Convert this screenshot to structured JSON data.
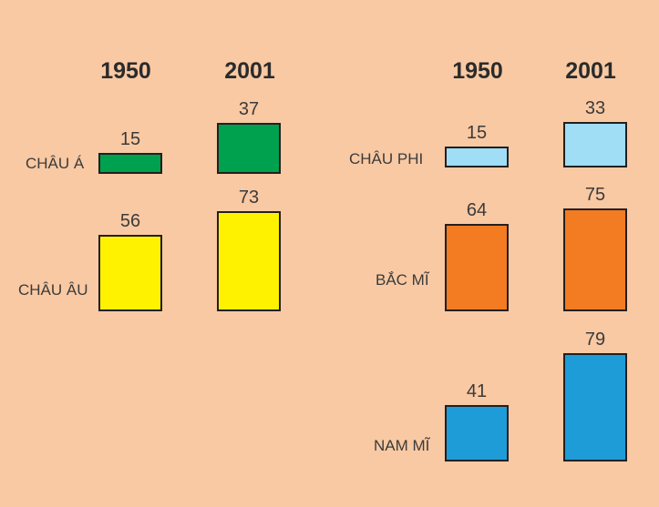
{
  "chart_data": {
    "type": "bar",
    "title": "",
    "categories": [
      "CHÂU Á",
      "CHÂU ÂU",
      "CHÂU PHI",
      "BẮC MĨ",
      "NAM MĨ"
    ],
    "series": [
      {
        "name": "1950",
        "values": [
          15,
          56,
          15,
          64,
          41
        ]
      },
      {
        "name": "2001",
        "values": [
          37,
          73,
          33,
          75,
          79
        ]
      }
    ],
    "category_colors": [
      "#00A14E",
      "#FFF200",
      "#9FDEF5",
      "#F37B21",
      "#1E9CD7"
    ],
    "value_labels_shown": true,
    "column_headers": [
      "1950",
      "2001"
    ],
    "layout_hint": {
      "panels": [
        [
          "CHÂU Á",
          "CHÂU ÂU"
        ],
        [
          "CHÂU PHI",
          "BẮC MĨ",
          "NAM MĨ"
        ]
      ],
      "legend": "none",
      "grid": false,
      "axes": "none",
      "bars_share_baseline_per_row": true
    },
    "colors": {
      "background": "#F9C9A3",
      "bar_border": "#231F20",
      "value_text": "#3B3B3B",
      "label_text": "#3B3B3B",
      "header_text": "#2B2B2B"
    }
  }
}
